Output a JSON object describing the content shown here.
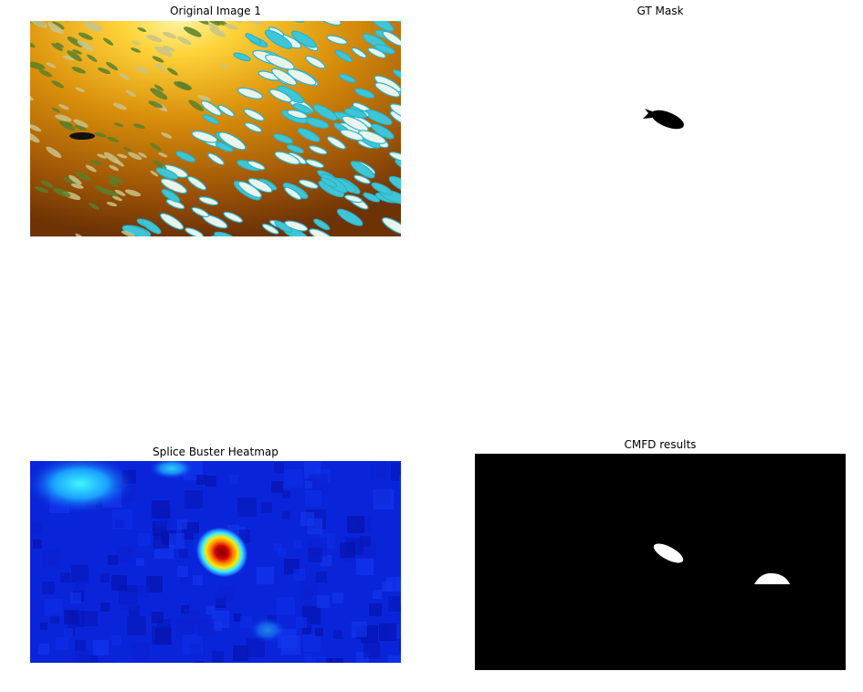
{
  "panels": {
    "original": {
      "title": "Original Image 1"
    },
    "gt_mask": {
      "title": "GT Mask"
    },
    "splice_buster": {
      "title": "Splice Buster Heatmap"
    },
    "cmfd": {
      "title": "CMFD results"
    }
  },
  "colors": {
    "ocean_deep": "#7a3c05",
    "ocean_gold": "#e6a10c",
    "sun": "#ffe066",
    "fish_cyan": "#39c9d9",
    "fish_green": "#4f7a2a",
    "heat_low": "#0a1fd6",
    "heat_high": "#8b0000",
    "mask_black": "#000000",
    "mask_white": "#ffffff"
  }
}
